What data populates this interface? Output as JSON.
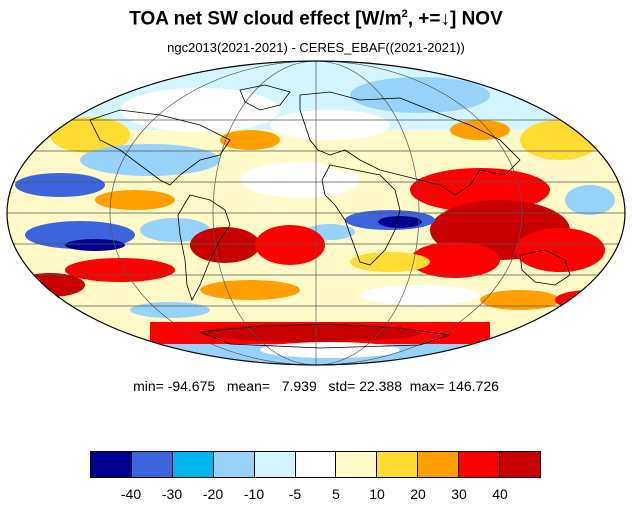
{
  "title": {
    "prefix": "TOA net SW cloud effect [W/m",
    "superscript": "2",
    "suffix": ", +=↓]  NOV"
  },
  "subtitle": "ngc2013(2021-2021) - CERES_EBAF((2021-2021))",
  "stats": {
    "min_label": "min=",
    "min": "-94.675",
    "mean_label": "mean=",
    "mean": "7.939",
    "std_label": "std=",
    "std": "22.388",
    "max_label": "max=",
    "max": "146.726"
  },
  "colorbar": {
    "colors": [
      "#00008f",
      "#3c64dc",
      "#00b4f0",
      "#96d2fa",
      "#d2f5ff",
      "#ffffff",
      "#fffac8",
      "#ffdc32",
      "#ffa000",
      "#ff0000",
      "#c80000"
    ],
    "labels": [
      "-40",
      "-30",
      "-20",
      "-10",
      "-5",
      "5",
      "10",
      "20",
      "30",
      "40"
    ]
  },
  "map": {
    "projection": "Mollweide",
    "field": "difference of TOA net SW cloud effect",
    "gridlines": true
  }
}
